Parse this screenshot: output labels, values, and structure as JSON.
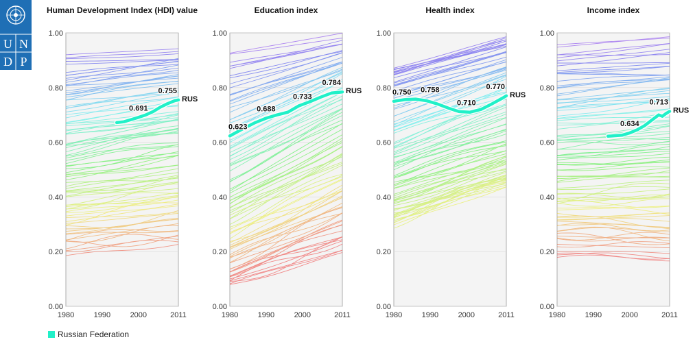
{
  "logo": {
    "letters": [
      "U",
      "N",
      "D",
      "P"
    ],
    "icon": "un-emblem-icon"
  },
  "legend": {
    "label": "Russian Federation",
    "color": "#21f0c8"
  },
  "colors": {
    "highlight": "#21f0c8",
    "panel_bg": "#f4f4f4",
    "grid": "#d9d9d9"
  },
  "chart_data": [
    {
      "type": "line",
      "title": "Human Development Index (HDI) value",
      "xlim": [
        1980,
        2011
      ],
      "ylim": [
        0,
        1
      ],
      "xticks": [
        "1980",
        "1990",
        "2000",
        "2011"
      ],
      "yticks": [
        "0.00",
        "0.20",
        "0.40",
        "0.60",
        "0.80",
        "1.00"
      ],
      "background": {
        "start": [
          0.92,
          0.83,
          0.77,
          0.69,
          0.62,
          0.55,
          0.47,
          0.4,
          0.33,
          0.27,
          0.2
        ],
        "end": [
          0.94,
          0.88,
          0.82,
          0.74,
          0.68,
          0.62,
          0.53,
          0.45,
          0.38,
          0.31,
          0.24
        ]
      },
      "highlight": {
        "name": "RUS",
        "x": [
          1994,
          1996,
          1998,
          2000,
          2002,
          2004,
          2006,
          2008,
          2010,
          2011
        ],
        "y": [
          0.672,
          0.675,
          0.683,
          0.691,
          0.7,
          0.712,
          0.728,
          0.741,
          0.752,
          0.755
        ]
      },
      "labels": [
        {
          "x": 2000,
          "y": 0.691,
          "text": "0.691"
        },
        {
          "x": 2011,
          "y": 0.755,
          "text": "0.755"
        }
      ]
    },
    {
      "type": "line",
      "title": "Education index",
      "xlim": [
        1980,
        2011
      ],
      "ylim": [
        0,
        1
      ],
      "xticks": [
        "1980",
        "1990",
        "2000",
        "2011"
      ],
      "yticks": [
        "0.00",
        "0.20",
        "0.40",
        "0.60",
        "0.80",
        "1.00"
      ],
      "background": {
        "start": [
          0.94,
          0.8,
          0.7,
          0.6,
          0.5,
          0.4,
          0.32,
          0.25,
          0.18,
          0.12,
          0.06
        ],
        "end": [
          0.99,
          0.92,
          0.86,
          0.8,
          0.72,
          0.62,
          0.52,
          0.44,
          0.36,
          0.28,
          0.2
        ]
      },
      "highlight": {
        "name": "RUS",
        "x": [
          1980,
          1983,
          1987,
          1990,
          1993,
          1996,
          1999,
          2002,
          2005,
          2008,
          2011
        ],
        "y": [
          0.623,
          0.645,
          0.672,
          0.688,
          0.7,
          0.71,
          0.733,
          0.748,
          0.765,
          0.78,
          0.784
        ]
      },
      "labels": [
        {
          "x": 1980,
          "y": 0.623,
          "text": "0.623"
        },
        {
          "x": 1990,
          "y": 0.688,
          "text": "0.688"
        },
        {
          "x": 2000,
          "y": 0.733,
          "text": "0.733"
        },
        {
          "x": 2011,
          "y": 0.784,
          "text": "0.784"
        }
      ]
    },
    {
      "type": "line",
      "title": "Health index",
      "xlim": [
        1980,
        2011
      ],
      "ylim": [
        0,
        1
      ],
      "xticks": [
        "1980",
        "1990",
        "2000",
        "2011"
      ],
      "yticks": [
        "0.00",
        "0.20",
        "0.40",
        "0.60",
        "0.80",
        "1.00"
      ],
      "background": {
        "start": [
          0.88,
          0.84,
          0.78,
          0.7,
          0.62,
          0.55,
          0.48,
          0.42,
          0.37,
          0.33,
          0.3
        ],
        "end": [
          0.98,
          0.95,
          0.9,
          0.84,
          0.77,
          0.7,
          0.62,
          0.55,
          0.5,
          0.47,
          0.44
        ]
      },
      "highlight": {
        "name": "RUS",
        "x": [
          1980,
          1983,
          1986,
          1989,
          1992,
          1995,
          1998,
          2001,
          2004,
          2007,
          2010,
          2011
        ],
        "y": [
          0.75,
          0.756,
          0.758,
          0.752,
          0.74,
          0.725,
          0.712,
          0.71,
          0.72,
          0.74,
          0.762,
          0.77
        ]
      },
      "labels": [
        {
          "x": 1980,
          "y": 0.75,
          "text": "0.750"
        },
        {
          "x": 1990,
          "y": 0.758,
          "text": "0.758"
        },
        {
          "x": 2000,
          "y": 0.71,
          "text": "0.710"
        },
        {
          "x": 2011,
          "y": 0.77,
          "text": "0.770"
        }
      ]
    },
    {
      "type": "line",
      "title": "Income index",
      "xlim": [
        1980,
        2011
      ],
      "ylim": [
        0,
        1
      ],
      "xticks": [
        "1980",
        "1990",
        "2000",
        "2011"
      ],
      "yticks": [
        "0.00",
        "0.20",
        "0.40",
        "0.60",
        "0.80",
        "1.00"
      ],
      "background": {
        "start": [
          0.96,
          0.86,
          0.78,
          0.7,
          0.62,
          0.55,
          0.48,
          0.4,
          0.33,
          0.26,
          0.18
        ],
        "end": [
          0.98,
          0.88,
          0.82,
          0.74,
          0.66,
          0.58,
          0.5,
          0.42,
          0.34,
          0.26,
          0.16
        ]
      },
      "highlight": {
        "name": "RUS",
        "x": [
          1994,
          1996,
          1998,
          2000,
          2002,
          2004,
          2006,
          2008,
          2009,
          2010,
          2011
        ],
        "y": [
          0.622,
          0.624,
          0.626,
          0.634,
          0.645,
          0.66,
          0.68,
          0.7,
          0.695,
          0.705,
          0.713
        ]
      },
      "labels": [
        {
          "x": 2000,
          "y": 0.634,
          "text": "0.634"
        },
        {
          "x": 2011,
          "y": 0.713,
          "text": "0.713"
        }
      ]
    }
  ]
}
